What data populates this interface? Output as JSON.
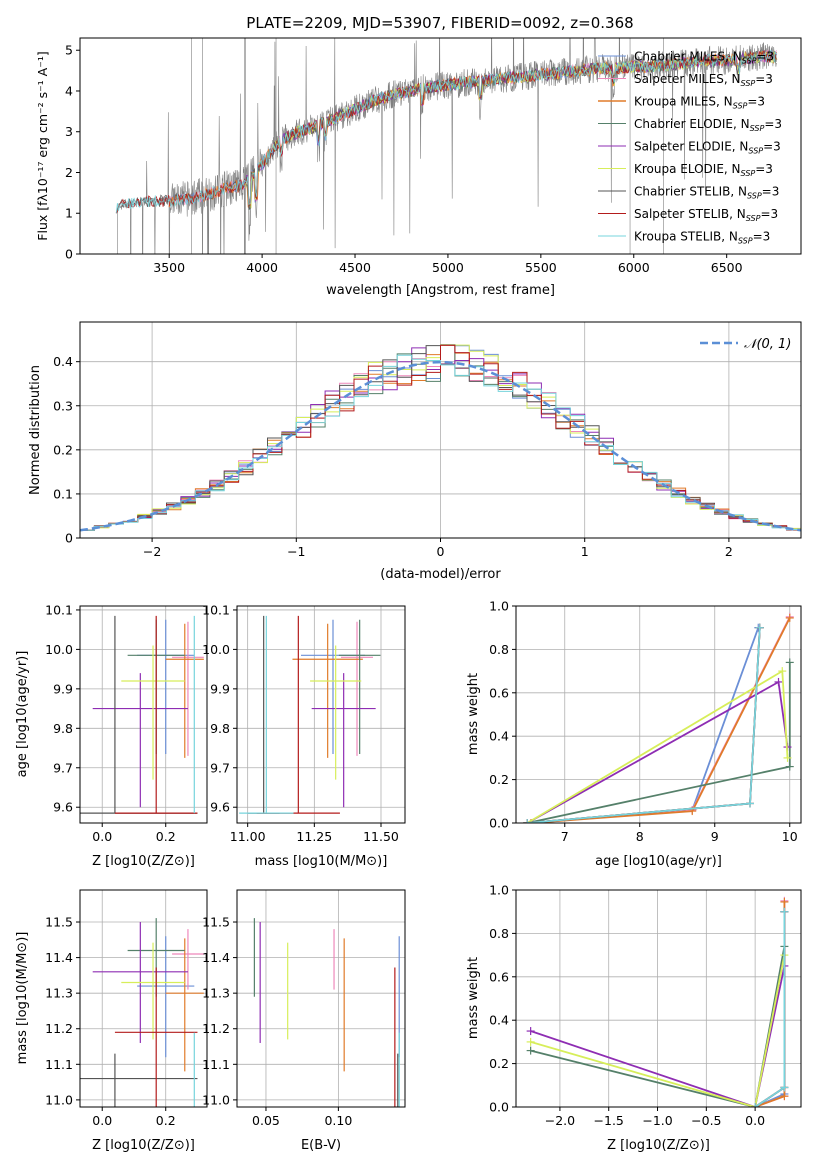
{
  "figure_title": "PLATE=2209, MJD=53907, FIBERID=0092, z=0.368",
  "colors": {
    "chabrier_miles": "#6b8fd6",
    "salpeter_miles": "#ee88bb",
    "kroupa_miles": "#e07b2a",
    "chabrier_elodie": "#55806a",
    "salpeter_elodie": "#8e2db3",
    "kroupa_elodie": "#d7ee5a",
    "chabrier_stelib": "#555555",
    "salpeter_stelib": "#b31b1b",
    "kroupa_stelib": "#77d4dc",
    "data": "#808080",
    "gaussian": "#5b8fd6",
    "grid": "#b0b0b0"
  },
  "chart_data": [
    {
      "id": "spectrum",
      "type": "line",
      "title": "PLATE=2209, MJD=53907, FIBERID=0092, z=0.368",
      "xlabel": "wavelength [Angstrom, rest frame]",
      "ylabel": "Flux [fλ10⁻¹⁷ erg cm⁻² s⁻¹ A⁻¹]",
      "xlim": [
        3020,
        6900
      ],
      "ylim": [
        0,
        5.3
      ],
      "xticks": [
        3500,
        4000,
        4500,
        5000,
        5500,
        6000,
        6500
      ],
      "yticks": [
        0,
        1,
        2,
        3,
        4,
        5
      ],
      "grid": false,
      "legend_position": "upper-right",
      "legend": [
        "Chabrier MILES, N_SSP=3",
        "Salpeter MILES, N_SSP=3",
        "Kroupa MILES, N_SSP=3",
        "Chabrier ELODIE, N_SSP=3",
        "Salpeter ELODIE, N_SSP=3",
        "Kroupa ELODIE, N_SSP=3",
        "Chabrier STELIB, N_SSP=3",
        "Salpeter STELIB, N_SSP=3",
        "Kroupa STELIB, N_SSP=3"
      ],
      "continuum": {
        "x": [
          3220,
          3300,
          3400,
          3500,
          3600,
          3700,
          3800,
          3900,
          4000,
          4100,
          4200,
          4300,
          4400,
          4500,
          4600,
          4700,
          4800,
          4900,
          5000,
          5100,
          5200,
          5300,
          5400,
          5500,
          5600,
          5700,
          5800,
          5900,
          6000,
          6100,
          6200,
          6300,
          6400,
          6500,
          6600,
          6700,
          6770
        ],
        "y": [
          1.15,
          1.25,
          1.3,
          1.3,
          1.35,
          1.45,
          1.6,
          1.7,
          2.2,
          2.8,
          3.0,
          3.15,
          3.35,
          3.55,
          3.75,
          3.9,
          4.0,
          4.1,
          4.15,
          4.2,
          4.25,
          4.3,
          4.35,
          4.4,
          4.45,
          4.5,
          4.55,
          4.55,
          4.6,
          4.6,
          4.65,
          4.7,
          4.75,
          4.75,
          4.8,
          4.85,
          4.85
        ]
      }
    },
    {
      "id": "residuals",
      "type": "line",
      "xlabel": "(data-model)/error",
      "ylabel": "Normed distribution",
      "xlim": [
        -2.5,
        2.5
      ],
      "ylim": [
        0,
        0.49
      ],
      "xticks": [
        -2,
        -1,
        0,
        1,
        2
      ],
      "yticks": [
        0,
        0.1,
        0.2,
        0.3,
        0.4
      ],
      "grid": true,
      "legend_position": "upper-right",
      "legend": [
        "𝒩(0, 1)"
      ],
      "bin_width": 0.1,
      "gaussian": {
        "mean": 0,
        "sigma": 1
      }
    },
    {
      "id": "age_vs_Z",
      "type": "scatter",
      "xlabel": "Z [log10(Z/Z⊙)]",
      "ylabel": "age  [log10(age/yr)]",
      "xlim": [
        -0.07,
        0.33
      ],
      "ylim": [
        9.56,
        10.11
      ],
      "xticks": [
        0,
        0.2
      ],
      "yticks": [
        9.6,
        9.7,
        9.8,
        9.9,
        10.0,
        10.1
      ],
      "grid": true
    },
    {
      "id": "age_vs_mass",
      "type": "scatter",
      "xlabel": "mass [log10(M/M⊙)]",
      "xlim": [
        10.96,
        11.59
      ],
      "ylim": [
        9.56,
        10.11
      ],
      "xticks": [
        11.0,
        11.25,
        11.5
      ],
      "yticks": [
        9.6,
        9.7,
        9.8,
        9.9,
        10.0,
        10.1
      ],
      "grid": true
    },
    {
      "id": "weight_vs_age",
      "type": "line",
      "xlabel": "age  [log10(age/yr)]",
      "ylabel": "mass weight",
      "xlim": [
        6.35,
        10.15
      ],
      "ylim": [
        0,
        1.0
      ],
      "xticks": [
        7,
        8,
        9,
        10
      ],
      "yticks": [
        0,
        0.2,
        0.4,
        0.6,
        0.8,
        1.0
      ],
      "grid": true
    },
    {
      "id": "mass_vs_Z",
      "type": "scatter",
      "xlabel": "Z [log10(Z/Z⊙)]",
      "ylabel": "mass [log10(M/M⊙)]",
      "xlim": [
        -0.07,
        0.33
      ],
      "ylim": [
        10.98,
        11.59
      ],
      "xticks": [
        0,
        0.2
      ],
      "yticks": [
        11.0,
        11.1,
        11.2,
        11.3,
        11.4,
        11.5
      ],
      "grid": true
    },
    {
      "id": "mass_vs_ebv",
      "type": "scatter",
      "xlabel": "E(B-V)",
      "xlim": [
        0.03,
        0.146
      ],
      "ylim": [
        10.98,
        11.59
      ],
      "xticks": [
        0.05,
        0.1
      ],
      "yticks": [
        11.0,
        11.1,
        11.2,
        11.3,
        11.4,
        11.5
      ],
      "grid": true
    },
    {
      "id": "weight_vs_Z",
      "type": "line",
      "xlabel": "Z [log10(Z/Z⊙)]",
      "ylabel": "mass weight",
      "xlim": [
        -2.45,
        0.47
      ],
      "ylim": [
        0,
        1.0
      ],
      "xticks": [
        -2.0,
        -1.5,
        -1.0,
        -0.5,
        0.0
      ],
      "yticks": [
        0,
        0.2,
        0.4,
        0.6,
        0.8,
        1.0
      ],
      "grid": true
    }
  ],
  "models": [
    {
      "key": "chabrier_miles",
      "age": 9.985,
      "age_err": 0.1,
      "Z": 0.2,
      "Z_err": 0.09,
      "mass": 11.32,
      "mass_err": 0.2,
      "ebv": 0.142,
      "ages": [
        6.5,
        8.7,
        9.58
      ],
      "weights": [
        0.0,
        0.06,
        0.9
      ],
      "Zs": [
        -0.0,
        0.3,
        0.3
      ],
      "zweights": [
        0.0,
        0.06,
        0.9
      ]
    },
    {
      "key": "salpeter_miles",
      "age": 9.98,
      "age_err": 0.09,
      "Z": 0.27,
      "Z_err": 0.05,
      "mass": 11.41,
      "mass_err": 0.1,
      "ebv": 0.097,
      "ages": [
        6.55,
        8.7,
        10.0
      ],
      "weights": [
        0.0,
        0.06,
        0.95
      ],
      "Zs": [
        0.0,
        0.3,
        0.3
      ],
      "zweights": [
        0.0,
        0.05,
        0.95
      ]
    },
    {
      "key": "kroupa_miles",
      "age": 9.975,
      "age_err": 0.1,
      "Z": 0.26,
      "Z_err": 0.06,
      "mass": 11.3,
      "mass_err": 0.22,
      "ebv": 0.104,
      "ages": [
        6.55,
        8.7,
        10.0
      ],
      "weights": [
        0.0,
        0.055,
        0.945
      ],
      "Zs": [
        0.0,
        0.3,
        0.3
      ],
      "zweights": [
        0.0,
        0.05,
        0.945
      ]
    },
    {
      "key": "chabrier_elodie",
      "age": 9.985,
      "age_err": 0.1,
      "Z": 0.17,
      "Z_err": 0.09,
      "mass": 11.42,
      "mass_err": 0.13,
      "ebv": 0.042,
      "ages": [
        6.5,
        10.0,
        10.0
      ],
      "weights": [
        0.0,
        0.26,
        0.74
      ],
      "Zs": [
        -2.3,
        0.0,
        0.3
      ],
      "zweights": [
        0.26,
        0.0,
        0.74
      ]
    },
    {
      "key": "salpeter_elodie",
      "age": 9.85,
      "age_err": 0.1,
      "Z": 0.12,
      "Z_err": 0.15,
      "mass": 11.36,
      "mass_err": 0.2,
      "ebv": 0.046,
      "ages": [
        6.5,
        9.85,
        9.97
      ],
      "weights": [
        0.0,
        0.65,
        0.35
      ],
      "Zs": [
        -2.3,
        0.0,
        0.3
      ],
      "zweights": [
        0.35,
        0.0,
        0.65
      ]
    },
    {
      "key": "kroupa_elodie",
      "age": 9.92,
      "age_err": 0.15,
      "Z": 0.16,
      "Z_err": 0.1,
      "mass": 11.33,
      "mass_err": 0.16,
      "ebv": 0.065,
      "ages": [
        6.5,
        9.9,
        9.97
      ],
      "weights": [
        0.0,
        0.7,
        0.3
      ],
      "Zs": [
        -2.3,
        0.0,
        0.3
      ],
      "zweights": [
        0.3,
        0.0,
        0.7
      ]
    },
    {
      "key": "chabrier_stelib",
      "age": 9.585,
      "age_err": 0.0,
      "Z": 0.04,
      "Z_err": 0.26,
      "mass": 11.06,
      "mass_err": 0.1,
      "ebv": 0.141,
      "ages": [
        6.5,
        9.47,
        9.6
      ],
      "weights": [
        0.0,
        0.09,
        0.9
      ],
      "Zs": [
        0.0,
        0.3,
        0.3
      ],
      "zweights": [
        0.0,
        0.09,
        0.9
      ]
    },
    {
      "key": "salpeter_stelib",
      "age": 9.585,
      "age_err": 0.0,
      "Z": 0.17,
      "Z_err": 0.13,
      "mass": 11.19,
      "mass_err": 0.26,
      "ebv": 0.139,
      "ages": [
        6.5,
        9.47,
        9.6
      ],
      "weights": [
        0.0,
        0.09,
        0.9
      ],
      "Zs": [
        0.0,
        0.3,
        0.3
      ],
      "zweights": [
        0.0,
        0.09,
        0.9
      ]
    },
    {
      "key": "kroupa_stelib",
      "age": 9.585,
      "age_err": 0.0,
      "Z": 0.29,
      "Z_err": 0.0,
      "mass": 11.07,
      "mass_err": 0.17,
      "ebv": 0.142,
      "ages": [
        6.5,
        9.47,
        9.6
      ],
      "weights": [
        0.0,
        0.09,
        0.9
      ],
      "Zs": [
        0.0,
        0.3,
        0.3
      ],
      "zweights": [
        0.0,
        0.09,
        0.9
      ]
    }
  ]
}
